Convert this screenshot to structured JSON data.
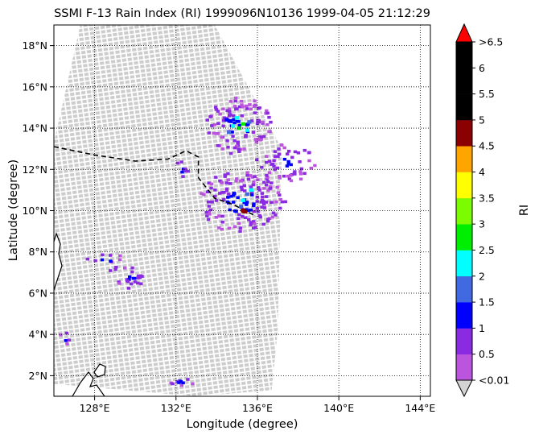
{
  "chart_data": {
    "type": "heatmap",
    "title": "SSMI F-13 Rain Index (RI) 1999096N10136 1999-04-05 21:12:29",
    "xlabel": "Longitude (degree)",
    "ylabel": "Latitude (degree)",
    "xlim": [
      126.0,
      144.5
    ],
    "ylim": [
      1.0,
      19.0
    ],
    "x_ticks": [
      128,
      132,
      136,
      140,
      144
    ],
    "x_tick_labels": [
      "128°E",
      "132°E",
      "136°E",
      "140°E",
      "144°E"
    ],
    "y_ticks": [
      2,
      4,
      6,
      8,
      10,
      12,
      14,
      16,
      18
    ],
    "y_tick_labels": [
      "2°N",
      "4°N",
      "6°N",
      "8°N",
      "10°N",
      "12°N",
      "14°N",
      "16°N",
      "18°N"
    ],
    "grid": true,
    "swath_fill_color": "#cccccc",
    "swath_outline_deg": [
      [
        127.3,
        19.0
      ],
      [
        133.9,
        19.0
      ],
      [
        137.2,
        13.0
      ],
      [
        137.0,
        4.2
      ],
      [
        136.7,
        1.3
      ],
      [
        133.0,
        1.0
      ],
      [
        126.0,
        1.6
      ],
      [
        126.0,
        13.3
      ]
    ],
    "track_line_deg": [
      [
        126.0,
        13.1
      ],
      [
        128.0,
        12.7
      ],
      [
        130.0,
        12.4
      ],
      [
        131.6,
        12.5
      ],
      [
        132.5,
        12.9
      ],
      [
        133.1,
        12.6
      ],
      [
        133.1,
        11.6
      ],
      [
        133.9,
        10.6
      ],
      [
        134.8,
        10.3
      ],
      [
        135.8,
        9.8
      ]
    ],
    "storm_center_deg": [
      135.3,
      10.0
    ],
    "colorbar": {
      "label": "RI",
      "levels": [
        "<0.01",
        "0.5",
        "1",
        "1.5",
        "2",
        "2.5",
        "3",
        "3.5",
        "4",
        "4.5",
        "5",
        "5.5",
        "6",
        ">6.5"
      ],
      "colors": [
        "#bb55dd",
        "#8a2be2",
        "#0000ff",
        "#4169e1",
        "#00ffff",
        "#00ee00",
        "#7cfc00",
        "#ffff00",
        "#ffa500",
        "#8b0000",
        "#000000",
        "#000000",
        "#000000"
      ],
      "over_color": "#ff0000",
      "under_color": "#d3d3d3"
    },
    "rain_cells": [
      {
        "lon": 134.8,
        "lat": 14.1,
        "ri_bin": 4
      },
      {
        "lon": 135.1,
        "lat": 14.0,
        "ri_bin": 5
      },
      {
        "lon": 135.3,
        "lat": 14.2,
        "ri_bin": 5
      },
      {
        "lon": 135.5,
        "lat": 13.9,
        "ri_bin": 4
      },
      {
        "lon": 134.6,
        "lat": 13.8,
        "ri_bin": 3
      },
      {
        "lon": 135.0,
        "lat": 14.5,
        "ri_bin": 4
      },
      {
        "lon": 135.6,
        "lat": 14.3,
        "ri_bin": 3
      },
      {
        "lon": 134.5,
        "lat": 14.4,
        "ri_bin": 2
      },
      {
        "lon": 135.3,
        "lat": 10.5,
        "ri_bin": 4
      },
      {
        "lon": 135.5,
        "lat": 10.8,
        "ri_bin": 3
      },
      {
        "lon": 135.2,
        "lat": 10.2,
        "ri_bin": 3
      },
      {
        "lon": 135.7,
        "lat": 11.0,
        "ri_bin": 4
      },
      {
        "lon": 135.4,
        "lat": 9.95,
        "ri_bin": 9
      }
    ]
  }
}
